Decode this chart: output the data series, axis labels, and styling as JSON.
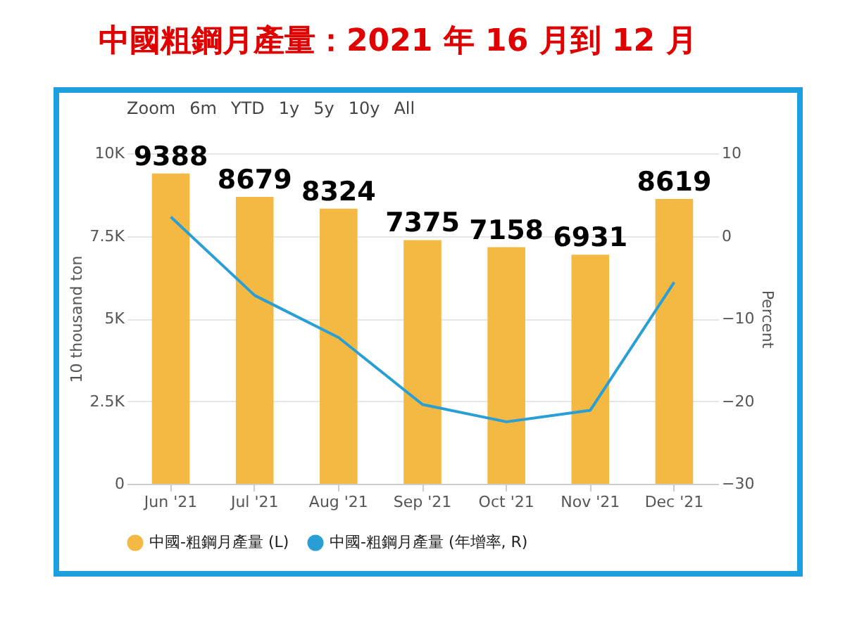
{
  "chart_data": {
    "type": "bar",
    "title": "中國粗鋼月產量：2021 年 16 月到 12 月",
    "ylabel": "10 thousand ton",
    "y2label": "Percent",
    "categories": [
      "Jun '21",
      "Jul '21",
      "Aug '21",
      "Sep '21",
      "Oct '21",
      "Nov '21",
      "Dec '21"
    ],
    "series": [
      {
        "name": "中國-粗鋼月產量 (L)",
        "color": "#f4b942",
        "values": [
          9388,
          8679,
          8324,
          7375,
          7158,
          6931,
          8619
        ],
        "value_labels": [
          "9388",
          "8679",
          "8324",
          "7375",
          "7158",
          "6931",
          "8619"
        ]
      },
      {
        "name": "中國-粗鋼月產量 (年增率, R)",
        "type": "line",
        "axis": "y2",
        "color": "#2a9fd6",
        "values": [
          2.3,
          -7.2,
          -12.3,
          -20.4,
          -22.5,
          -21.1,
          -5.6
        ]
      }
    ],
    "ylim": [
      0,
      10000
    ],
    "yticks": [
      {
        "value": 0,
        "label": "0"
      },
      {
        "value": 2500,
        "label": "2.5K"
      },
      {
        "value": 5000,
        "label": "5K"
      },
      {
        "value": 7500,
        "label": "7.5K"
      },
      {
        "value": 10000,
        "label": "10K"
      }
    ],
    "y2lim": [
      -30,
      10
    ],
    "y2ticks": [
      -30,
      -20,
      -10,
      0,
      10
    ],
    "grid": "y",
    "legend": "bottom",
    "marker": "none",
    "annotations": [
      "Zoom",
      "6m",
      "YTD",
      "1y",
      "5y",
      "10y",
      "All"
    ]
  }
}
